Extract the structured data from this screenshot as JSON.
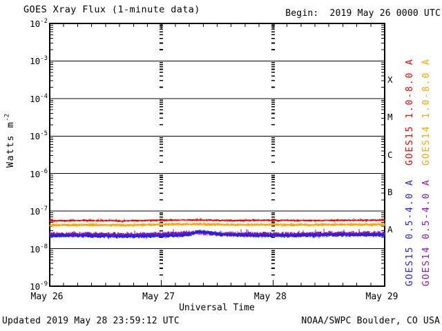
{
  "header": {
    "title": "GOES Xray Flux (1-minute data)",
    "begin_label": "Begin:  2019 May 26 0000 UTC"
  },
  "footer": {
    "updated": "Updated 2019 May 28 23:59:12 UTC",
    "source": "NOAA/SWPC Boulder, CO USA"
  },
  "axes": {
    "x_title": "Universal Time",
    "y_title_base": "Watts m",
    "y_title_exp": "-2",
    "log_base": "10",
    "y_tick_exponents": [
      "-2",
      "-3",
      "-4",
      "-5",
      "-6",
      "-7",
      "-8",
      "-9"
    ],
    "x_tick_labels": [
      "May 26",
      "May 27",
      "May 28",
      "May 29"
    ],
    "class_letters": [
      "X",
      "M",
      "C",
      "B",
      "A"
    ]
  },
  "legend": {
    "entries": [
      {
        "label": "GOES15 1.0-8.0 A",
        "color": "#ee0000",
        "column": "inner",
        "group": "long"
      },
      {
        "label": "GOES14 1.0-8.0 A",
        "color": "#ffa500",
        "column": "outer",
        "group": "long"
      },
      {
        "label": "GOES15 0.5-4.0 A",
        "color": "#2222dd",
        "column": "inner",
        "group": "short"
      },
      {
        "label": "GOES14 0.5-4.0 A",
        "color": "#8812bb",
        "column": "outer",
        "group": "short"
      }
    ]
  },
  "chart_data": {
    "type": "line",
    "title": "GOES Xray Flux (1-minute data)",
    "xlabel": "Universal Time",
    "ylabel": "Watts m^-2",
    "y_scale": "log",
    "ylim": [
      1e-09,
      0.01
    ],
    "x_start": "2019 May 26 0000 UTC",
    "x_end": "2019 May 29 0000 UTC",
    "x_range_hours": [
      0,
      72
    ],
    "x_tick_labels": [
      "May 26",
      "May 27",
      "May 28",
      "May 29"
    ],
    "grid": {
      "horizontal_lines_at_flux": [
        0.001,
        0.0001,
        1e-05,
        1e-06,
        1e-07,
        1e-08
      ],
      "vertical_dashed_lines_at_hours": [
        24,
        48
      ]
    },
    "flare_classes": [
      {
        "letter": "X",
        "range_wm2": [
          0.0001,
          0.001
        ]
      },
      {
        "letter": "M",
        "range_wm2": [
          1e-05,
          0.0001
        ]
      },
      {
        "letter": "C",
        "range_wm2": [
          1e-06,
          1e-05
        ]
      },
      {
        "letter": "B",
        "range_wm2": [
          1e-07,
          1e-06
        ]
      },
      {
        "letter": "A",
        "range_wm2": [
          1e-08,
          1e-07
        ]
      }
    ],
    "series": [
      {
        "name": "GOES15 1.0-8.0 A",
        "satellite": "GOES-15",
        "channel": "long (1.0-8.0 Angstrom)",
        "color": "#ee0000",
        "noise_log10": 0.028,
        "approx_level_wm2": 5.6e-08,
        "points_hour_flux": [
          [
            0,
            5.5e-08
          ],
          [
            8,
            5.6e-08
          ],
          [
            16,
            5.5e-08
          ],
          [
            24,
            5.7e-08
          ],
          [
            32,
            5.8e-08
          ],
          [
            40,
            5.6e-08
          ],
          [
            48,
            5.7e-08
          ],
          [
            56,
            5.6e-08
          ],
          [
            64,
            5.7e-08
          ],
          [
            72,
            5.7e-08
          ]
        ]
      },
      {
        "name": "GOES14 1.0-8.0 A",
        "satellite": "GOES-14",
        "channel": "long (1.0-8.0 Angstrom)",
        "color": "#ffa500",
        "noise_log10": 0.04,
        "approx_level_wm2": 4.3e-08,
        "points_hour_flux": [
          [
            0,
            4.2e-08
          ],
          [
            8,
            4.3e-08
          ],
          [
            16,
            4.2e-08
          ],
          [
            24,
            4.4e-08
          ],
          [
            32,
            4.5e-08
          ],
          [
            40,
            4.3e-08
          ],
          [
            48,
            4.4e-08
          ],
          [
            56,
            4.3e-08
          ],
          [
            64,
            4.4e-08
          ],
          [
            72,
            4.4e-08
          ]
        ]
      },
      {
        "name": "GOES15 0.5-4.0 A",
        "satellite": "GOES-15",
        "channel": "short (0.5-4.0 Angstrom)",
        "color": "#2222dd",
        "noise_log10": 0.05,
        "approx_level_wm2": 2.2e-08,
        "points_hour_flux": [
          [
            0,
            2.2e-08
          ],
          [
            8,
            2.2e-08
          ],
          [
            16,
            2.1e-08
          ],
          [
            24,
            2.2e-08
          ],
          [
            30,
            2.3e-08
          ],
          [
            31.5,
            2.75e-08
          ],
          [
            33,
            2.85e-08
          ],
          [
            35,
            2.6e-08
          ],
          [
            37,
            2.35e-08
          ],
          [
            44,
            2.2e-08
          ],
          [
            52,
            2.2e-08
          ],
          [
            60,
            2.3e-08
          ],
          [
            66,
            2.3e-08
          ],
          [
            72,
            2.3e-08
          ]
        ]
      },
      {
        "name": "GOES14 0.5-4.0 A",
        "satellite": "GOES-14",
        "channel": "short (0.5-4.0 Angstrom)",
        "color": "#8812bb",
        "noise_log10": 0.068,
        "approx_level_wm2": 2.4e-08,
        "points_hour_flux": [
          [
            0,
            2.4e-08
          ],
          [
            8,
            2.4e-08
          ],
          [
            16,
            2.3e-08
          ],
          [
            24,
            2.4e-08
          ],
          [
            32,
            2.7e-08
          ],
          [
            36,
            2.5e-08
          ],
          [
            44,
            2.4e-08
          ],
          [
            52,
            2.4e-08
          ],
          [
            60,
            2.5e-08
          ],
          [
            66,
            2.5e-08
          ],
          [
            72,
            2.5e-08
          ]
        ]
      }
    ]
  }
}
